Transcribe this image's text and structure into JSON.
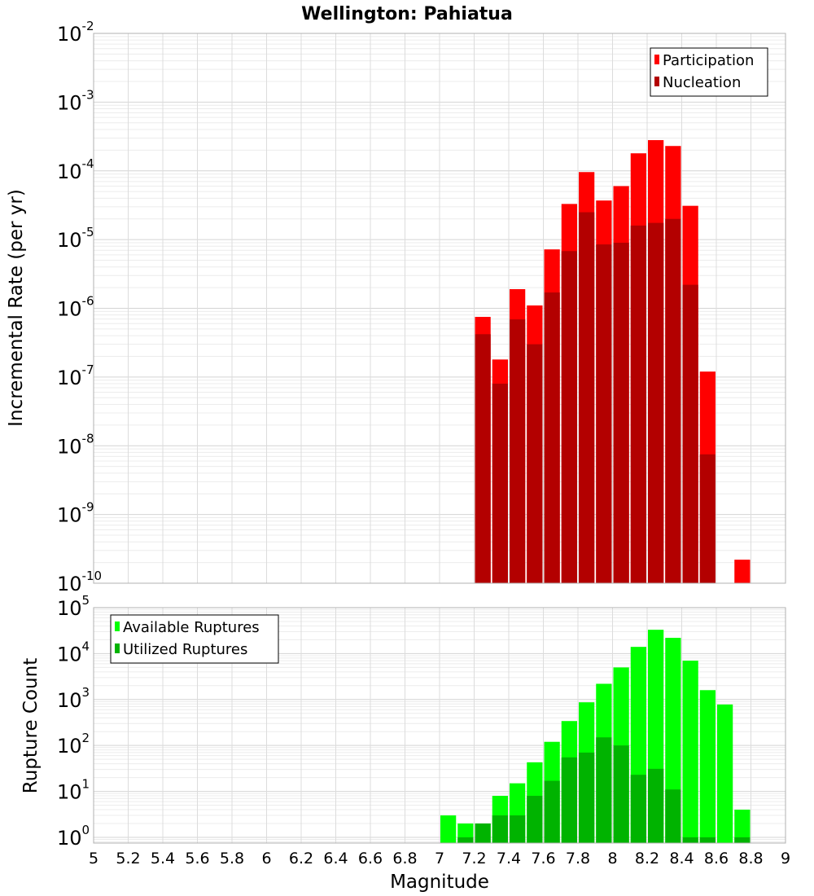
{
  "chart_data": [
    {
      "type": "bar",
      "title": "Wellington: Pahiatua",
      "xlabel": "",
      "ylabel": "Incremental Rate (per yr)",
      "yscale": "log",
      "ylim": [
        1e-10,
        0.01
      ],
      "xlim": [
        5,
        9
      ],
      "grid": true,
      "legend_position": "top-right",
      "series": [
        {
          "name": "Participation",
          "color": "#ff0000",
          "x": [
            7.25,
            7.35,
            7.45,
            7.55,
            7.65,
            7.75,
            7.85,
            7.95,
            8.05,
            8.15,
            8.25,
            8.35,
            8.45,
            8.55,
            8.75
          ],
          "values": [
            7.5e-07,
            1.8e-07,
            1.9e-06,
            1.1e-06,
            7.2e-06,
            3.3e-05,
            9.6e-05,
            3.7e-05,
            6e-05,
            0.00018,
            0.00028,
            0.00023,
            3.1e-05,
            1.2e-07,
            2.2e-10
          ]
        },
        {
          "name": "Nucleation",
          "color": "#b30000",
          "x": [
            7.25,
            7.35,
            7.45,
            7.55,
            7.65,
            7.75,
            7.85,
            7.95,
            8.05,
            8.15,
            8.25,
            8.35,
            8.45,
            8.55
          ],
          "values": [
            4.2e-07,
            8e-08,
            6.9e-07,
            3e-07,
            1.7e-06,
            6.8e-06,
            2.5e-05,
            8.5e-06,
            9e-06,
            1.6e-05,
            1.75e-05,
            2e-05,
            2.2e-06,
            7.5e-09
          ]
        }
      ]
    },
    {
      "type": "bar",
      "title": "",
      "xlabel": "Magnitude",
      "ylabel": "Rupture Count",
      "yscale": "log",
      "ylim": [
        0.75,
        100000.0
      ],
      "xlim": [
        5,
        9
      ],
      "xticks": [
        "5",
        "5.2",
        "5.4",
        "5.6",
        "5.8",
        "6",
        "6.2",
        "6.4",
        "6.6",
        "6.8",
        "7",
        "7.2",
        "7.4",
        "7.6",
        "7.8",
        "8",
        "8.2",
        "8.4",
        "8.6",
        "8.8",
        "9"
      ],
      "grid": true,
      "legend_position": "top-left",
      "series": [
        {
          "name": "Available Ruptures",
          "color": "#00ff00",
          "x": [
            7.05,
            7.15,
            7.25,
            7.35,
            7.45,
            7.55,
            7.65,
            7.75,
            7.85,
            7.95,
            8.05,
            8.15,
            8.25,
            8.35,
            8.45,
            8.55,
            8.65,
            8.75
          ],
          "values": [
            3,
            2,
            2,
            8,
            15,
            43,
            120,
            340,
            870,
            2200,
            5000,
            14000,
            33000,
            22000,
            7000,
            1600,
            780,
            4
          ]
        },
        {
          "name": "Utilized Ruptures",
          "color": "#00b300",
          "x": [
            7.15,
            7.25,
            7.35,
            7.45,
            7.55,
            7.65,
            7.75,
            7.85,
            7.95,
            8.05,
            8.15,
            8.25,
            8.35,
            8.45,
            8.55,
            8.75
          ],
          "values": [
            1,
            2,
            3,
            3,
            8,
            17,
            55,
            70,
            150,
            100,
            23,
            31,
            11,
            1,
            1,
            1
          ]
        }
      ]
    }
  ]
}
